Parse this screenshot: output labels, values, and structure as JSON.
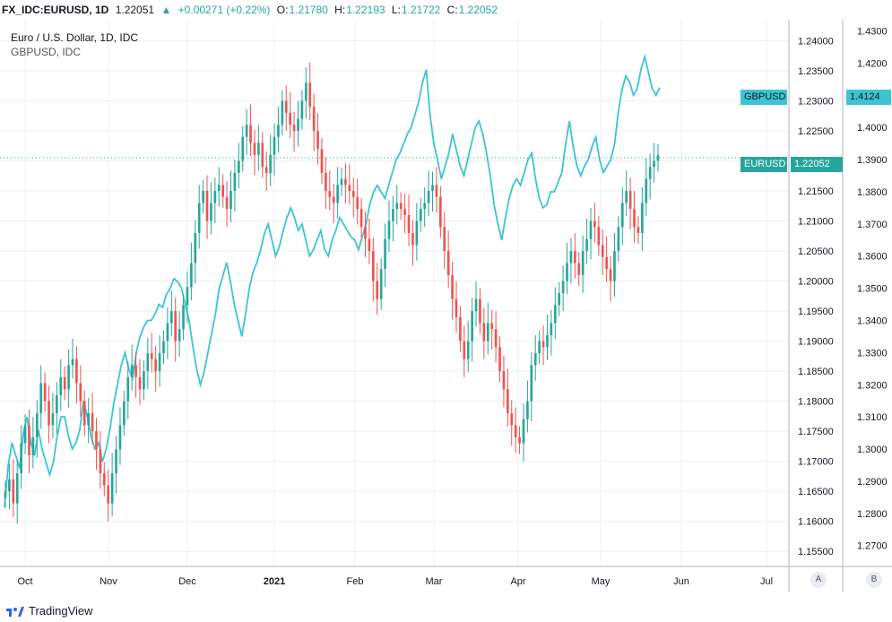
{
  "header": {
    "symbol": "FX_IDC:EURUSD, 1D",
    "last": "1.22051",
    "change_arrow": "▲",
    "change": "+0.00271 (+0.22%)",
    "o_label": "O:",
    "o_value": "1.21780",
    "h_label": "H:",
    "h_value": "1.22193",
    "l_label": "L:",
    "l_value": "1.21722",
    "c_label": "C:",
    "c_value": "1.22052"
  },
  "legend": {
    "main": "Euro / U.S. Dollar, 1D, IDC",
    "compare": "GBPUSD, IDC"
  },
  "badges": {
    "gbp_label": "GBPUSD",
    "gbp_value": "1.4124",
    "eur_label": "EURUSD",
    "eur_value": "1.22052"
  },
  "footer": {
    "logo": "TradingView",
    "scale_a": "A",
    "scale_b": "B"
  },
  "colors": {
    "up": "#26a69a",
    "down": "#ef5350",
    "compare": "#3bc5d3",
    "grid": "#eef0f3"
  },
  "chart_data": {
    "type": "candlestick+line",
    "title": "Euro / U.S. Dollar, 1D, IDC",
    "x_tick_labels": [
      "Oct",
      "Nov",
      "Dec",
      "2021",
      "Feb",
      "Mar",
      "Apr",
      "May",
      "Jun",
      "Jul"
    ],
    "y_left_ticks": [
      "1.24000",
      "1.23500",
      "1.23000",
      "1.22500",
      "1.22000",
      "1.21500",
      "1.21000",
      "1.20500",
      "1.20000",
      "1.19500",
      "1.19000",
      "1.18500",
      "1.18000",
      "1.17500",
      "1.17000",
      "1.16500",
      "1.16000",
      "1.15500"
    ],
    "y_right_ticks": [
      "1.4300",
      "1.4200",
      "1.4100",
      "1.4000",
      "1.3900",
      "1.3800",
      "1.3700",
      "1.3600",
      "1.3500",
      "1.3400",
      "1.3300",
      "1.3200",
      "1.3100",
      "1.3000",
      "1.2900",
      "1.2800",
      "1.2700"
    ],
    "eurusd_ylim": [
      1.1525,
      1.2435
    ],
    "gbpusd_ylim": [
      1.2635,
      1.4335
    ],
    "eurusd_close_path": [
      1.165,
      1.167,
      1.163,
      1.168,
      1.173,
      1.176,
      1.171,
      1.174,
      1.178,
      1.183,
      1.18,
      1.176,
      1.178,
      1.181,
      1.184,
      1.182,
      1.186,
      1.187,
      1.183,
      1.18,
      1.176,
      1.178,
      1.175,
      1.172,
      1.168,
      1.166,
      1.163,
      1.168,
      1.172,
      1.176,
      1.18,
      1.184,
      1.186,
      1.184,
      1.182,
      1.185,
      1.188,
      1.187,
      1.185,
      1.188,
      1.19,
      1.193,
      1.195,
      1.19,
      1.192,
      1.196,
      1.199,
      1.203,
      1.208,
      1.213,
      1.215,
      1.21,
      1.213,
      1.215,
      1.216,
      1.214,
      1.212,
      1.215,
      1.218,
      1.22,
      1.224,
      1.226,
      1.223,
      1.221,
      1.223,
      1.219,
      1.218,
      1.221,
      1.224,
      1.226,
      1.23,
      1.228,
      1.226,
      1.225,
      1.227,
      1.23,
      1.233,
      1.229,
      1.225,
      1.222,
      1.218,
      1.215,
      1.214,
      1.213,
      1.216,
      1.217,
      1.216,
      1.215,
      1.214,
      1.212,
      1.209,
      1.207,
      1.205,
      1.2,
      1.197,
      1.202,
      1.207,
      1.21,
      1.212,
      1.213,
      1.212,
      1.211,
      1.208,
      1.206,
      1.21,
      1.212,
      1.213,
      1.215,
      1.216,
      1.214,
      1.209,
      1.205,
      1.201,
      1.197,
      1.194,
      1.19,
      1.187,
      1.19,
      1.195,
      1.197,
      1.193,
      1.19,
      1.193,
      1.192,
      1.189,
      1.185,
      1.182,
      1.178,
      1.176,
      1.174,
      1.173,
      1.177,
      1.18,
      1.186,
      1.188,
      1.19,
      1.189,
      1.191,
      1.193,
      1.196,
      1.198,
      1.2,
      1.203,
      1.205,
      1.203,
      1.201,
      1.205,
      1.207,
      1.21,
      1.209,
      1.206,
      1.204,
      1.202,
      1.2,
      1.205,
      1.209,
      1.213,
      1.215,
      1.212,
      1.209,
      1.208,
      1.213,
      1.217,
      1.219,
      1.22,
      1.221
    ],
    "gbpusd_line": [
      1.282,
      1.295,
      1.302,
      1.298,
      1.294,
      1.305,
      1.31,
      1.302,
      1.298,
      1.306,
      1.3,
      1.296,
      1.292,
      1.296,
      1.304,
      1.31,
      1.31,
      1.304,
      1.3,
      1.302,
      1.306,
      1.315,
      1.31,
      1.304,
      1.3,
      1.302,
      1.296,
      1.3,
      1.306,
      1.314,
      1.32,
      1.326,
      1.33,
      1.325,
      1.322,
      1.33,
      1.335,
      1.338,
      1.34,
      1.34,
      1.342,
      1.345,
      1.344,
      1.348,
      1.35,
      1.353,
      1.352,
      1.35,
      1.345,
      1.34,
      1.332,
      1.325,
      1.32,
      1.324,
      1.33,
      1.336,
      1.342,
      1.35,
      1.354,
      1.358,
      1.352,
      1.345,
      1.34,
      1.335,
      1.342,
      1.35,
      1.355,
      1.358,
      1.362,
      1.367,
      1.37,
      1.365,
      1.36,
      1.363,
      1.368,
      1.372,
      1.375,
      1.372,
      1.368,
      1.37,
      1.365,
      1.36,
      1.362,
      1.365,
      1.368,
      1.362,
      1.36,
      1.365,
      1.368,
      1.372,
      1.37,
      1.368,
      1.366,
      1.365,
      1.362,
      1.366,
      1.37,
      1.376,
      1.38,
      1.382,
      1.38,
      1.378,
      1.382,
      1.386,
      1.39,
      1.392,
      1.395,
      1.398,
      1.4,
      1.404,
      1.408,
      1.414,
      1.418,
      1.404,
      1.395,
      1.39,
      1.384,
      1.388,
      1.392,
      1.398,
      1.393,
      1.388,
      1.385,
      1.39,
      1.395,
      1.4,
      1.402,
      1.398,
      1.392,
      1.385,
      1.376,
      1.37,
      1.365,
      1.372,
      1.378,
      1.382,
      1.384,
      1.382,
      1.386,
      1.39,
      1.392,
      1.384,
      1.378,
      1.375,
      1.376,
      1.38,
      1.38,
      1.383,
      1.386,
      1.395,
      1.402,
      1.394,
      1.388,
      1.385,
      1.388,
      1.39,
      1.394,
      1.397,
      1.39,
      1.386,
      1.388,
      1.39,
      1.395,
      1.405,
      1.412,
      1.416,
      1.414,
      1.41,
      1.412,
      1.418,
      1.422,
      1.417,
      1.412,
      1.41,
      1.4124
    ]
  }
}
